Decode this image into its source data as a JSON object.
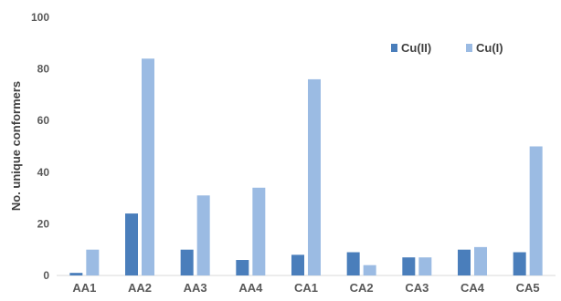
{
  "chart_data": {
    "type": "bar",
    "title": "",
    "xlabel": "",
    "ylabel": "No. unique conformers",
    "ylim": [
      0,
      100
    ],
    "yticks": [
      0,
      20,
      40,
      60,
      80,
      100
    ],
    "grid": false,
    "legend_position": "top-right",
    "categories": [
      "AA1",
      "AA2",
      "AA3",
      "AA4",
      "CA1",
      "CA2",
      "CA3",
      "CA4",
      "CA5"
    ],
    "series": [
      {
        "name": "Cu(II)",
        "color": "#4a7ebb",
        "values": [
          1,
          24,
          10,
          6,
          8,
          9,
          7,
          10,
          9
        ]
      },
      {
        "name": "Cu(I)",
        "color": "#9bbbe3",
        "values": [
          10,
          84,
          31,
          34,
          76,
          4,
          7,
          11,
          50
        ]
      }
    ]
  }
}
